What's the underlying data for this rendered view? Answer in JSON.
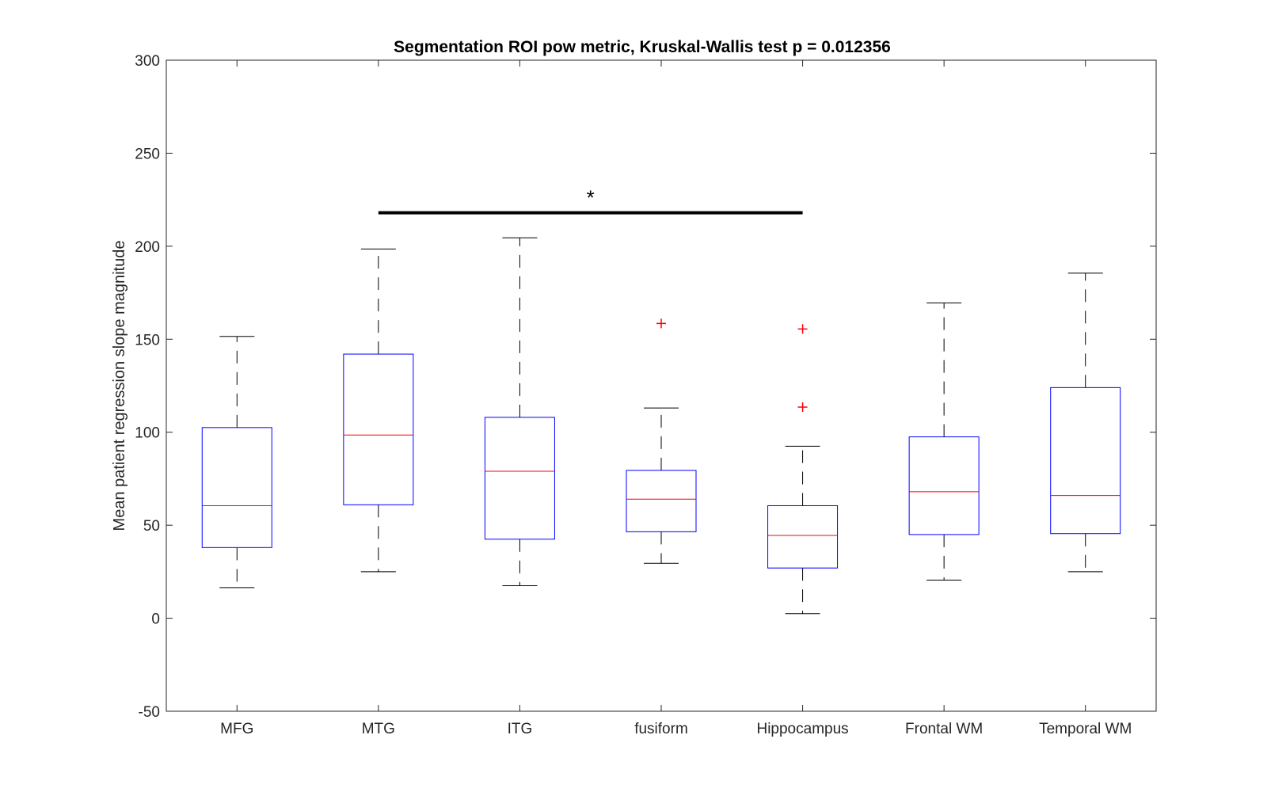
{
  "chart_data": {
    "type": "box",
    "title": "Segmentation ROI pow metric, Kruskal-Wallis test p = 0.012356",
    "xlabel": "",
    "ylabel": "Mean patient regression slope magnitude",
    "ylim": [
      -50,
      300
    ],
    "yticks": [
      -50,
      0,
      50,
      100,
      150,
      200,
      250,
      300
    ],
    "ytick_labels": [
      "-50",
      "0",
      "50",
      "100",
      "150",
      "200",
      "250",
      "300"
    ],
    "categories": [
      "MFG",
      "MTG",
      "ITG",
      "fusiform",
      "Hippocampus",
      "Frontal WM",
      "Temporal WM"
    ],
    "boxes": [
      {
        "category": "MFG",
        "whisker_low": 16.5,
        "q1": 38,
        "median": 60.5,
        "q3": 102.5,
        "whisker_high": 151.5,
        "outliers": []
      },
      {
        "category": "MTG",
        "whisker_low": 25,
        "q1": 61,
        "median": 98.5,
        "q3": 142,
        "whisker_high": 198.5,
        "outliers": []
      },
      {
        "category": "ITG",
        "whisker_low": 17.5,
        "q1": 42.5,
        "median": 79,
        "q3": 108,
        "whisker_high": 204.5,
        "outliers": []
      },
      {
        "category": "fusiform",
        "whisker_low": 29.5,
        "q1": 46.5,
        "median": 64,
        "q3": 79.5,
        "whisker_high": 113,
        "outliers": [
          158.5
        ]
      },
      {
        "category": "Hippocampus",
        "whisker_low": 2.5,
        "q1": 27,
        "median": 44.5,
        "q3": 60.5,
        "whisker_high": 92.5,
        "outliers": [
          113.5,
          155.5
        ]
      },
      {
        "category": "Frontal WM",
        "whisker_low": 20.5,
        "q1": 45,
        "median": 68,
        "q3": 97.5,
        "whisker_high": 169.5,
        "outliers": []
      },
      {
        "category": "Temporal WM",
        "whisker_low": 25,
        "q1": 45.5,
        "median": 66,
        "q3": 124,
        "whisker_high": 185.5,
        "outliers": []
      }
    ],
    "significance": {
      "from": "MTG",
      "to": "Hippocampus",
      "y": 218,
      "marker": "*"
    },
    "colors": {
      "box": "#0000ff",
      "median": "#ff0000",
      "whisker": "#000000",
      "outlier": "#ff0000",
      "bar": "#000000"
    },
    "grid": false,
    "legend": "none"
  }
}
